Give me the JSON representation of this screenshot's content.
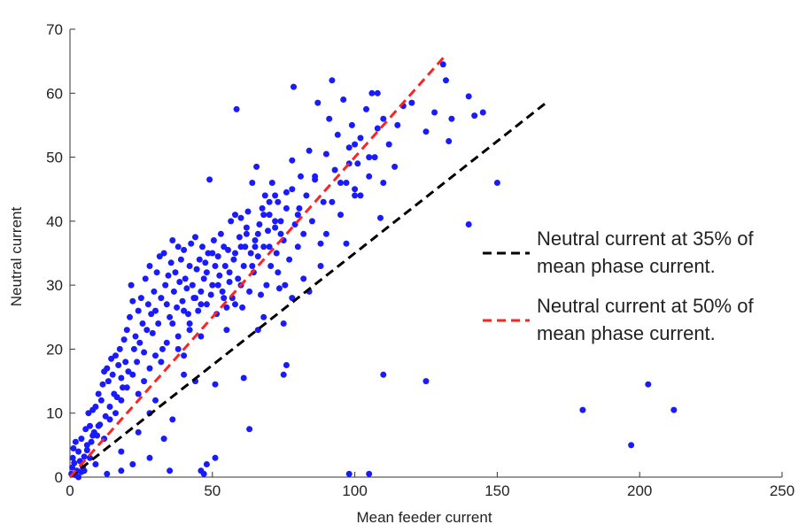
{
  "chart_data": {
    "type": "scatter",
    "title": "",
    "xlabel": "Mean feeder current",
    "ylabel": "Neutral current",
    "xlim": [
      0,
      250
    ],
    "ylim": [
      0,
      70
    ],
    "xticks": [
      0,
      50,
      100,
      150,
      200,
      250
    ],
    "yticks": [
      0,
      10,
      20,
      30,
      40,
      50,
      60,
      70
    ],
    "grid": false,
    "legend_position": "right",
    "colors": {
      "points": "#1a1aff",
      "line_35": "#000000",
      "line_50": "#ff2222"
    },
    "reference_lines": [
      {
        "name": "Neutral current at 35% of mean phase current.",
        "slope": 0.35,
        "x": [
          0,
          168
        ],
        "style": "dashed",
        "color": "#000000"
      },
      {
        "name": "Neutral current at 50% of mean phase current.",
        "slope": 0.5,
        "x": [
          0,
          131.5
        ],
        "style": "dashed",
        "color": "#ff2222"
      }
    ],
    "legend": [
      {
        "lines": [
          "Neutral current at 35% of",
          "mean phase current."
        ],
        "color": "#000000"
      },
      {
        "lines": [
          "Neutral current at 50% of",
          "mean phase current."
        ],
        "color": "#ff2222"
      }
    ],
    "series": [
      {
        "marker": "dot",
        "color": "#1a1aff",
        "points": [
          [
            0.5,
            0.5
          ],
          [
            0.8,
            1.5
          ],
          [
            1,
            3
          ],
          [
            1.2,
            4.5
          ],
          [
            1.5,
            2.2
          ],
          [
            2,
            5.5
          ],
          [
            2.5,
            1
          ],
          [
            3,
            4
          ],
          [
            3.5,
            2.5
          ],
          [
            4,
            6
          ],
          [
            4.5,
            1.5
          ],
          [
            5,
            3.2
          ],
          [
            5.5,
            7.5
          ],
          [
            6,
            4.2
          ],
          [
            6.5,
            10
          ],
          [
            7,
            8
          ],
          [
            7.5,
            5.5
          ],
          [
            8,
            10.5
          ],
          [
            8.5,
            7
          ],
          [
            9,
            11
          ],
          [
            9.5,
            6.5
          ],
          [
            10,
            13
          ],
          [
            10.5,
            8.2
          ],
          [
            11,
            12
          ],
          [
            11.5,
            14.5
          ],
          [
            12,
            16.5
          ],
          [
            12.5,
            9.5
          ],
          [
            13,
            17
          ],
          [
            13.5,
            15
          ],
          [
            14,
            11
          ],
          [
            14.5,
            18.5
          ],
          [
            15,
            16
          ],
          [
            15.5,
            13
          ],
          [
            16,
            19
          ],
          [
            16.5,
            12.5
          ],
          [
            17,
            17.5
          ],
          [
            17.5,
            20
          ],
          [
            18,
            15.5
          ],
          [
            18.5,
            14
          ],
          [
            19,
            21.5
          ],
          [
            19.5,
            18
          ],
          [
            20,
            23
          ],
          [
            20.5,
            16.5
          ],
          [
            21,
            25
          ],
          [
            21.5,
            30
          ],
          [
            22,
            27.5
          ],
          [
            22.5,
            20
          ],
          [
            23,
            22
          ],
          [
            23.5,
            18
          ],
          [
            24,
            26
          ],
          [
            24.5,
            21
          ],
          [
            25,
            28
          ],
          [
            25.5,
            24
          ],
          [
            26,
            19.5
          ],
          [
            26.5,
            31
          ],
          [
            27,
            23
          ],
          [
            27.5,
            27
          ],
          [
            28,
            33
          ],
          [
            28.5,
            25.5
          ],
          [
            29,
            22.5
          ],
          [
            29.5,
            29
          ],
          [
            30,
            26
          ],
          [
            30.5,
            32
          ],
          [
            31,
            24
          ],
          [
            31.5,
            34.5
          ],
          [
            32,
            28
          ],
          [
            32.5,
            20
          ],
          [
            33,
            35
          ],
          [
            33.5,
            30
          ],
          [
            34,
            27
          ],
          [
            34.5,
            31.5
          ],
          [
            35,
            25
          ],
          [
            35.5,
            33.5
          ],
          [
            36,
            37
          ],
          [
            36.5,
            29
          ],
          [
            37,
            32
          ],
          [
            37.5,
            26.5
          ],
          [
            38,
            36
          ],
          [
            38.5,
            30.5
          ],
          [
            39,
            34
          ],
          [
            39.5,
            27.5
          ],
          [
            40,
            35.5
          ],
          [
            40.5,
            31
          ],
          [
            41,
            29.5
          ],
          [
            41.5,
            25.5
          ],
          [
            42,
            33
          ],
          [
            42.5,
            36.5
          ],
          [
            43,
            30
          ],
          [
            43.5,
            28
          ],
          [
            44,
            37.5
          ],
          [
            44.5,
            32.5
          ],
          [
            45,
            26
          ],
          [
            45.5,
            34
          ],
          [
            46,
            29
          ],
          [
            46.5,
            36
          ],
          [
            47,
            31
          ],
          [
            47.5,
            33.5
          ],
          [
            48,
            27
          ],
          [
            48.5,
            35
          ],
          [
            49,
            46.5
          ],
          [
            49.5,
            28.5
          ],
          [
            50,
            30
          ],
          [
            50.5,
            37
          ],
          [
            51,
            33
          ],
          [
            51.5,
            25.5
          ],
          [
            52,
            34.5
          ],
          [
            52.5,
            31.5
          ],
          [
            53,
            38
          ],
          [
            53.5,
            29
          ],
          [
            54,
            36
          ],
          [
            54.5,
            33
          ],
          [
            55,
            26.5
          ],
          [
            55.5,
            35.5
          ],
          [
            56,
            30.5
          ],
          [
            56.5,
            40
          ],
          [
            57,
            28
          ],
          [
            57.5,
            34
          ],
          [
            58,
            41
          ],
          [
            58.5,
            57.5
          ],
          [
            59,
            31
          ],
          [
            59.5,
            37.5
          ],
          [
            60,
            40.5
          ],
          [
            60.5,
            26.5
          ],
          [
            61,
            33
          ],
          [
            61.5,
            36
          ],
          [
            62,
            38
          ],
          [
            62.5,
            41.5
          ],
          [
            63,
            29
          ],
          [
            63.5,
            35
          ],
          [
            64,
            46
          ],
          [
            64.5,
            32
          ],
          [
            65,
            37
          ],
          [
            65.5,
            48.5
          ],
          [
            66,
            34.5
          ],
          [
            66.5,
            39.5
          ],
          [
            67,
            28.5
          ],
          [
            67.5,
            42
          ],
          [
            68,
            36
          ],
          [
            68.5,
            44
          ],
          [
            69,
            30
          ],
          [
            69.5,
            38.5
          ],
          [
            70,
            41
          ],
          [
            70.5,
            33
          ],
          [
            71,
            46
          ],
          [
            72,
            39
          ],
          [
            72.5,
            35
          ],
          [
            73,
            43
          ],
          [
            73.5,
            29.5
          ],
          [
            74,
            40
          ],
          [
            75,
            37
          ],
          [
            75.5,
            30
          ],
          [
            76,
            44.5
          ],
          [
            77,
            34
          ],
          [
            78,
            49.5
          ],
          [
            78.5,
            61
          ],
          [
            79,
            39.5
          ],
          [
            80,
            36
          ],
          [
            80.5,
            42
          ],
          [
            81,
            47
          ],
          [
            82,
            38
          ],
          [
            83,
            44
          ],
          [
            84,
            51
          ],
          [
            85,
            40
          ],
          [
            86,
            46.5
          ],
          [
            87,
            58.5
          ],
          [
            88,
            36.5
          ],
          [
            89,
            43
          ],
          [
            90,
            50.5
          ],
          [
            91,
            56
          ],
          [
            92,
            62
          ],
          [
            93,
            48
          ],
          [
            94,
            53.5
          ],
          [
            95,
            41
          ],
          [
            96,
            59
          ],
          [
            97,
            46
          ],
          [
            98,
            51.5
          ],
          [
            99,
            55
          ],
          [
            100,
            45
          ],
          [
            101,
            49
          ],
          [
            102,
            53
          ],
          [
            104,
            57.5
          ],
          [
            105,
            47
          ],
          [
            106,
            60
          ],
          [
            107,
            50
          ],
          [
            108,
            54.5
          ],
          [
            110,
            56
          ],
          [
            112,
            52
          ],
          [
            114,
            48.5
          ],
          [
            115,
            55
          ],
          [
            117,
            58
          ],
          [
            120,
            58.5
          ],
          [
            125,
            54
          ],
          [
            128,
            57
          ],
          [
            131,
            64.5
          ],
          [
            132,
            62
          ],
          [
            133,
            52.5
          ],
          [
            134,
            56
          ],
          [
            140,
            59.5
          ],
          [
            142,
            56.5
          ],
          [
            145,
            57
          ],
          [
            150,
            46
          ],
          [
            140,
            39.5
          ],
          [
            109,
            40.5
          ],
          [
            110,
            46
          ],
          [
            97,
            36.5
          ],
          [
            100,
            44
          ],
          [
            75,
            24
          ],
          [
            75,
            16
          ],
          [
            76,
            17.5
          ],
          [
            66,
            23
          ],
          [
            61,
            15.5
          ],
          [
            63,
            7.5
          ],
          [
            51,
            14.5
          ],
          [
            51,
            3
          ],
          [
            46,
            1
          ],
          [
            47,
            0.5
          ],
          [
            48,
            2
          ],
          [
            44,
            15
          ],
          [
            40,
            16
          ],
          [
            36,
            9
          ],
          [
            35,
            1
          ],
          [
            28,
            3
          ],
          [
            24,
            7
          ],
          [
            22,
            2
          ],
          [
            18,
            1
          ],
          [
            13,
            0.5
          ],
          [
            9,
            2
          ],
          [
            7,
            3
          ],
          [
            5,
            1
          ],
          [
            3,
            0
          ],
          [
            98,
            0.5
          ],
          [
            105,
            0.5
          ],
          [
            110,
            16
          ],
          [
            125,
            15
          ],
          [
            180,
            10.5
          ],
          [
            197,
            5
          ],
          [
            203,
            14.5
          ],
          [
            212,
            10.5
          ],
          [
            18,
            4
          ],
          [
            28,
            10
          ],
          [
            30,
            12
          ],
          [
            33,
            6
          ],
          [
            38,
            20
          ],
          [
            40,
            19
          ],
          [
            42,
            23
          ],
          [
            46,
            22
          ],
          [
            55,
            23
          ],
          [
            58,
            27
          ],
          [
            60,
            30
          ],
          [
            65,
            36
          ],
          [
            68,
            25
          ],
          [
            70,
            43
          ],
          [
            72,
            40
          ],
          [
            73,
            32
          ],
          [
            78,
            28
          ],
          [
            82,
            31
          ],
          [
            84,
            29
          ],
          [
            86,
            47
          ],
          [
            88,
            33
          ],
          [
            90,
            38
          ],
          [
            92,
            43
          ],
          [
            95,
            46
          ],
          [
            98,
            49
          ],
          [
            100,
            52
          ],
          [
            102,
            44
          ],
          [
            105,
            50
          ],
          [
            108,
            60
          ],
          [
            2,
            0.3
          ],
          [
            4,
            0.8
          ],
          [
            6,
            5
          ],
          [
            8,
            6.5
          ],
          [
            10,
            8
          ],
          [
            12,
            6
          ],
          [
            14,
            9
          ],
          [
            16,
            10
          ],
          [
            18,
            12
          ],
          [
            20,
            14
          ],
          [
            22,
            16
          ],
          [
            24,
            13
          ],
          [
            26,
            15
          ],
          [
            28,
            17
          ],
          [
            30,
            19
          ],
          [
            32,
            18
          ],
          [
            34,
            21
          ],
          [
            36,
            24
          ],
          [
            38,
            22
          ],
          [
            40,
            26
          ],
          [
            42,
            24
          ],
          [
            44,
            28
          ],
          [
            46,
            27
          ],
          [
            48,
            32
          ],
          [
            50,
            35
          ],
          [
            52,
            30
          ],
          [
            54,
            28
          ],
          [
            56,
            32
          ],
          [
            58,
            35
          ],
          [
            60,
            36
          ],
          [
            62,
            39
          ],
          [
            64,
            33
          ],
          [
            66,
            38
          ],
          [
            68,
            41
          ],
          [
            70,
            36
          ],
          [
            72,
            44
          ],
          [
            74,
            38
          ],
          [
            76,
            42
          ],
          [
            78,
            45
          ],
          [
            80,
            41
          ]
        ]
      }
    ]
  }
}
